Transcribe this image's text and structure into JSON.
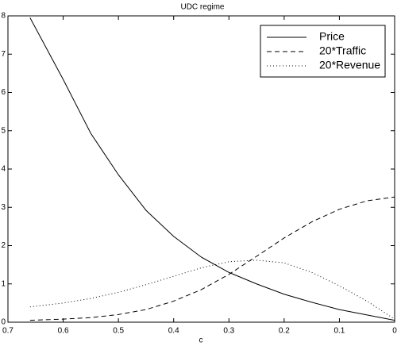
{
  "chart_data": {
    "type": "line",
    "title": "UDC regime",
    "x_label": "c",
    "x": [
      0.66,
      0.6,
      0.55,
      0.5,
      0.45,
      0.4,
      0.35,
      0.3,
      0.25,
      0.2,
      0.15,
      0.1,
      0.05,
      0
    ],
    "series": [
      {
        "name": "Price",
        "color": "#000000",
        "style": "solid",
        "values": [
          7.95,
          6.34,
          4.93,
          3.85,
          2.92,
          2.24,
          1.7,
          1.3,
          1.0,
          0.73,
          0.52,
          0.33,
          0.19,
          0.05
        ]
      },
      {
        "name": "20*Traffic",
        "color": "#000000",
        "style": "dashed",
        "values": [
          0.05,
          0.08,
          0.12,
          0.2,
          0.33,
          0.55,
          0.85,
          1.25,
          1.72,
          2.2,
          2.62,
          2.95,
          3.17,
          3.27
        ]
      },
      {
        "name": "20*Revenue",
        "color": "#000000",
        "style": "dotted",
        "values": [
          0.4,
          0.5,
          0.62,
          0.78,
          0.98,
          1.2,
          1.42,
          1.58,
          1.62,
          1.55,
          1.3,
          0.95,
          0.55,
          0.08
        ]
      }
    ],
    "xlim": [
      0.7,
      0
    ],
    "xticks": [
      0.7,
      0.6,
      0.5,
      0.4,
      0.3,
      0.2,
      0.1,
      0
    ],
    "ylim": [
      0,
      8
    ],
    "yticks": [
      0,
      1,
      2,
      3,
      4,
      5,
      6,
      7,
      8
    ],
    "grid": false,
    "legend": "upper right"
  }
}
